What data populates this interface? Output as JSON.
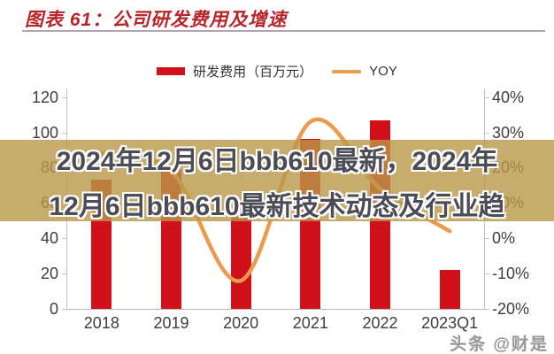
{
  "header": {
    "title": "图表 61：公司研发费用及增速"
  },
  "legend": {
    "bar_label": "研发费用（百万元）",
    "line_label": "YOY"
  },
  "overlay": {
    "line1": "2024年12月6日bbb610最新，2024年",
    "line2": "12月6日bbb610最新技术动态及行业趋"
  },
  "watermark": "头条 @财是",
  "colors": {
    "bar": "#d0111b",
    "line": "#eb9a4e",
    "title": "#b7262b",
    "band": "rgba(185,153,72,0.8)",
    "overlay_text": "#4b4c55",
    "axis": "#c4c4c4",
    "label": "#3d3d3d"
  },
  "chart_data": {
    "type": "bar",
    "title": "公司研发费用及增速",
    "categories": [
      "2018",
      "2019",
      "2020",
      "2021",
      "2022",
      "2023Q1"
    ],
    "series": [
      {
        "name": "研发费用（百万元）",
        "type": "bar",
        "axis": "left",
        "values": [
          73,
          79,
          55,
          96,
          107,
          22
        ]
      },
      {
        "name": "YOY",
        "type": "line",
        "axis": "right",
        "unit": "%",
        "values": [
          24,
          19,
          -12,
          33,
          14,
          2
        ]
      }
    ],
    "left_axis": {
      "min": 0,
      "max": 120,
      "step": 20,
      "tick_labels": [
        "0",
        "20",
        "40",
        "60",
        "80",
        "100",
        "120"
      ]
    },
    "right_axis": {
      "min": -20,
      "max": 40,
      "step": 10,
      "tick_labels": [
        "-20%",
        "-10%",
        "0%",
        "10%",
        "20%",
        "30%",
        "40%"
      ]
    },
    "grid": false,
    "legend_position": "top-center"
  }
}
